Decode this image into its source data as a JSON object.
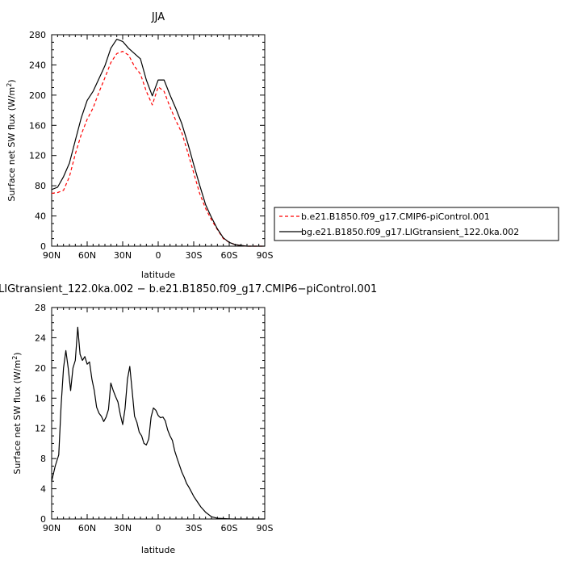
{
  "chart_data": [
    {
      "type": "line",
      "title": "JJA",
      "xlabel": "latitude",
      "ylabel": "Surface net SW flux (W/m²)",
      "ylabel_base": "Surface net SW flux (W/m",
      "ylabel_sup": "2",
      "ylabel_end": ")",
      "xlim": [
        90,
        -90
      ],
      "ylim": [
        0,
        280
      ],
      "xticks": [
        90,
        60,
        30,
        0,
        -30,
        -60,
        -90
      ],
      "xtick_labels": [
        "90N",
        "60N",
        "30N",
        "0",
        "30S",
        "60S",
        "90S"
      ],
      "yticks": [
        0,
        40,
        80,
        120,
        160,
        200,
        240,
        280
      ],
      "ytick_labels": [
        "0",
        "40",
        "80",
        "120",
        "160",
        "200",
        "240",
        "280"
      ],
      "legend_placement": "right",
      "series": [
        {
          "name": "b.e21.B1850.f09_g17.CMIP6-piControl.001",
          "color": "#ff0000",
          "dash": "dashed",
          "x": [
            90,
            85,
            80,
            75,
            70,
            65,
            60,
            55,
            50,
            45,
            40,
            35,
            30,
            25,
            20,
            15,
            10,
            5,
            0,
            -5,
            -10,
            -15,
            -20,
            -25,
            -30,
            -35,
            -40,
            -45,
            -50,
            -55,
            -60,
            -65,
            -70,
            -75,
            -80,
            -85,
            -90
          ],
          "values": [
            70,
            71,
            74,
            92,
            122,
            148,
            168,
            183,
            204,
            223,
            243,
            255,
            258,
            253,
            238,
            228,
            205,
            187,
            211,
            205,
            184,
            166,
            150,
            124,
            97,
            70,
            50,
            35,
            22,
            10,
            5,
            2,
            1,
            0,
            0,
            0,
            0
          ]
        },
        {
          "name": "bg.e21.B1850.f09_g17.LIGtransient_122.0ka.002",
          "color": "#000000",
          "dash": "solid",
          "x": [
            90,
            85,
            80,
            75,
            70,
            65,
            60,
            55,
            50,
            45,
            40,
            35,
            30,
            25,
            20,
            15,
            10,
            5,
            0,
            -5,
            -10,
            -15,
            -20,
            -25,
            -30,
            -35,
            -40,
            -45,
            -50,
            -55,
            -60,
            -65,
            -70,
            -75,
            -80,
            -85,
            -90
          ],
          "values": [
            75,
            78,
            92,
            110,
            140,
            170,
            193,
            205,
            222,
            239,
            262,
            274,
            271,
            262,
            255,
            248,
            220,
            199,
            220,
            220,
            200,
            182,
            162,
            136,
            108,
            81,
            55,
            38,
            23,
            11,
            5,
            2,
            1,
            0,
            0,
            0,
            0
          ]
        }
      ]
    },
    {
      "type": "line",
      "title": "LIGtransient_122.0ka.002 − b.e21.B1850.f09_g17.CMIP6−piControl.001",
      "xlabel": "latitude",
      "ylabel": "Surface net SW flux (W/m²)",
      "ylabel_base": "Surface net SW flux (W/m",
      "ylabel_sup": "2",
      "ylabel_end": ")",
      "xlim": [
        90,
        -90
      ],
      "ylim": [
        0,
        28
      ],
      "xticks": [
        90,
        60,
        30,
        0,
        -30,
        -60,
        -90
      ],
      "xtick_labels": [
        "90N",
        "60N",
        "30N",
        "0",
        "30S",
        "60S",
        "90S"
      ],
      "yticks": [
        0,
        4,
        8,
        12,
        16,
        20,
        24,
        28
      ],
      "ytick_labels": [
        "0",
        "4",
        "8",
        "12",
        "16",
        "20",
        "24",
        "28"
      ],
      "series": [
        {
          "color": "#000000",
          "dash": "solid",
          "x": [
            90,
            87,
            84,
            82,
            80,
            78,
            76,
            74,
            72,
            70,
            68,
            66,
            64,
            62,
            60,
            58,
            56,
            54,
            52,
            50,
            48,
            46,
            44,
            42,
            40,
            38,
            36,
            34,
            32,
            30,
            28,
            26,
            24,
            22,
            20,
            18,
            16,
            14,
            12,
            10,
            8,
            6,
            4,
            2,
            0,
            -2,
            -4,
            -6,
            -8,
            -10,
            -12,
            -14,
            -16,
            -18,
            -20,
            -22,
            -24,
            -26,
            -28,
            -30,
            -33,
            -36,
            -40,
            -45,
            -50,
            -55,
            -60,
            -63,
            -66,
            -70,
            -75,
            -80,
            -85,
            -90
          ],
          "values": [
            5,
            7,
            8.5,
            15,
            20,
            22.3,
            20,
            17,
            20,
            21,
            25.4,
            21.8,
            21,
            21.5,
            20.5,
            20.8,
            18.5,
            17,
            14.8,
            14,
            13.6,
            12.9,
            13.5,
            14.5,
            18,
            17,
            16.2,
            15.5,
            13.8,
            12.5,
            14.6,
            18.5,
            20.2,
            17,
            13.6,
            12.8,
            11.5,
            11,
            10,
            9.8,
            10.6,
            13.5,
            14.7,
            14.4,
            13.7,
            13.4,
            13.5,
            13,
            11.8,
            11,
            10.4,
            9,
            8,
            7.1,
            6.2,
            5.5,
            4.7,
            4.2,
            3.6,
            3,
            2.3,
            1.6,
            0.9,
            0.3,
            0.1,
            0.05,
            0.02,
            0,
            0,
            0,
            0,
            0,
            0,
            0
          ]
        }
      ]
    }
  ]
}
